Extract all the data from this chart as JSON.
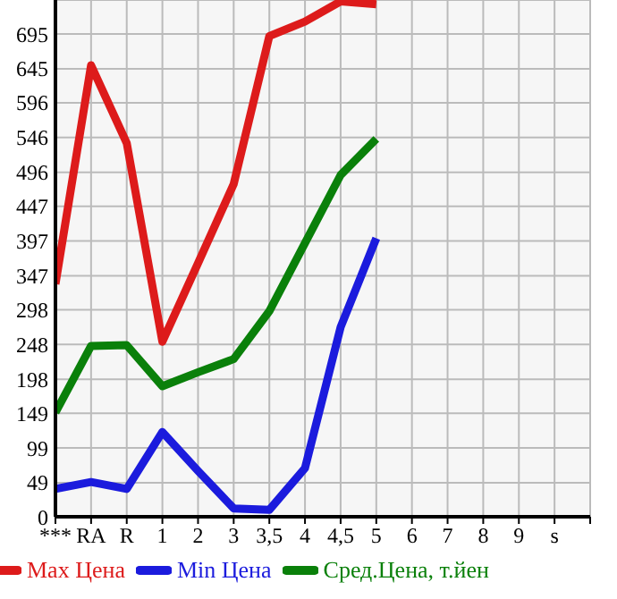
{
  "chart_data": {
    "type": "line",
    "categories": [
      "***",
      "RA",
      "R",
      "1",
      "2",
      "3",
      "3,5",
      "4",
      "4,5",
      "5",
      "6",
      "7",
      "8",
      "9",
      "s"
    ],
    "series": [
      {
        "name": "Max Цена",
        "color": "#dd1b1b",
        "values": [
          335,
          650,
          538,
          252,
          365,
          479,
          692,
          713,
          742,
          738,
          null,
          null,
          null,
          null,
          null
        ]
      },
      {
        "name": "Min Цена",
        "color": "#1b1bdd",
        "values": [
          40,
          50,
          40,
          122,
          66,
          12,
          10,
          70,
          273,
          401,
          null,
          null,
          null,
          null,
          null
        ]
      },
      {
        "name": "Сред.Цена, т.йен",
        "color": "#0a800a",
        "values": [
          150,
          246,
          247,
          188,
          208,
          227,
          296,
          394,
          492,
          544,
          null,
          null,
          null,
          null,
          null
        ]
      }
    ],
    "ylim": [
      0,
      744
    ],
    "yticks": [
      0,
      49,
      99,
      149,
      198,
      248,
      298,
      347,
      397,
      447,
      496,
      546,
      596,
      645,
      695,
      {
        "value": 744,
        "label": null
      }
    ],
    "grid": true,
    "legend": "bottom",
    "marker": "none",
    "line_style": "solid"
  }
}
